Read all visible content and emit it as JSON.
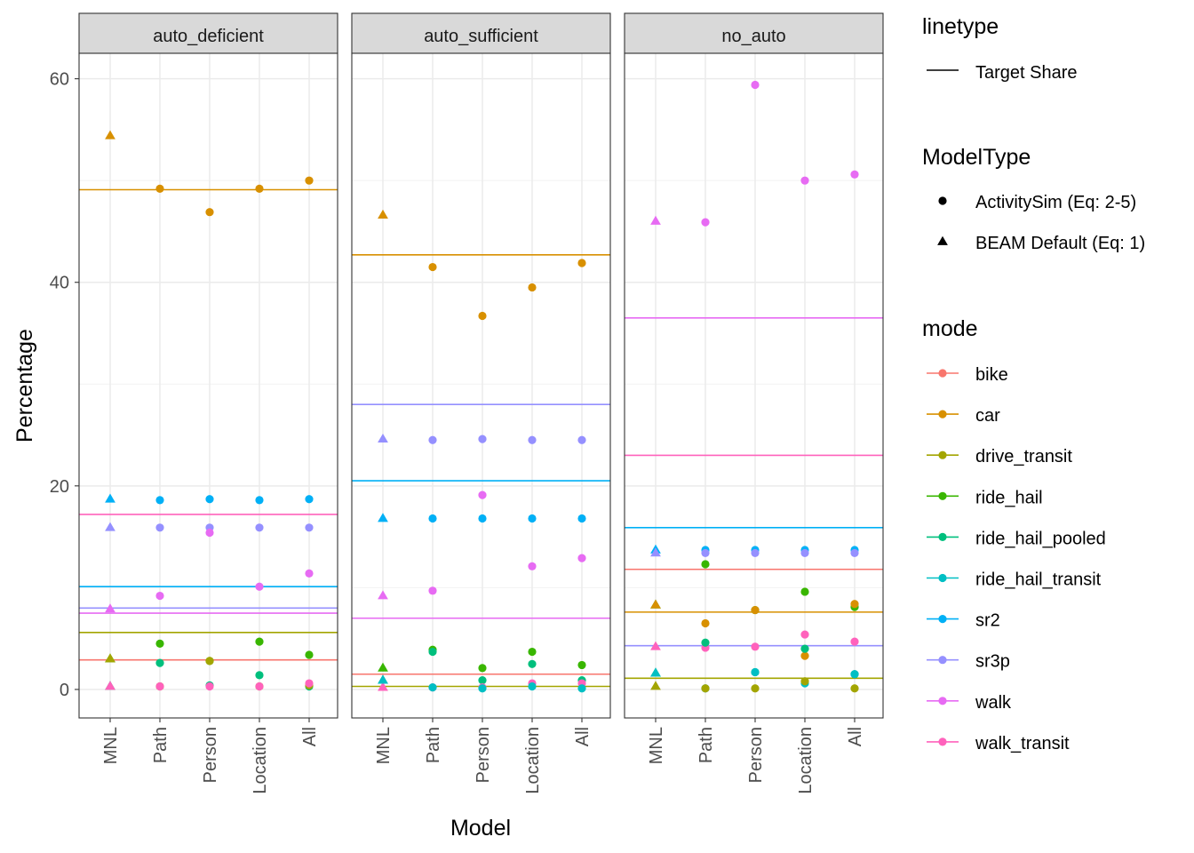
{
  "chart_data": {
    "type": "scatter",
    "ylabel": "Percentage",
    "xlabel": "Model",
    "categories": [
      "MNL",
      "Path",
      "Person",
      "Location",
      "All"
    ],
    "ylim": [
      -2.8,
      62.5
    ],
    "yticks": [
      0,
      20,
      40,
      60
    ],
    "grid": true,
    "facets": [
      "auto_deficient",
      "auto_sufficient",
      "no_auto"
    ],
    "modes": [
      "bike",
      "car",
      "drive_transit",
      "ride_hail",
      "ride_hail_pooled",
      "ride_hail_transit",
      "sr2",
      "sr3p",
      "walk",
      "walk_transit"
    ],
    "colors": {
      "bike": "#F8766D",
      "car": "#D89000",
      "drive_transit": "#A3A500",
      "ride_hail": "#39B600",
      "ride_hail_pooled": "#00BF7D",
      "ride_hail_transit": "#00BFC4",
      "sr2": "#00B0F6",
      "sr3p": "#9590FF",
      "walk": "#E76BF3",
      "walk_transit": "#FF62BC"
    },
    "legend": {
      "placement": "right",
      "linetype_title": "linetype",
      "linetype_items": [
        "Target Share"
      ],
      "modeltype_title": "ModelType",
      "modeltype_items": [
        {
          "label": "ActivitySim (Eq: 2-5)",
          "shape": "circle"
        },
        {
          "label": "BEAM Default (Eq: 1)",
          "shape": "triangle"
        }
      ],
      "mode_title": "mode"
    },
    "panels": [
      {
        "facet": "auto_deficient",
        "targets": {
          "bike": 2.9,
          "car": 49.1,
          "drive_transit": 5.6,
          "sr2": 10.1,
          "sr3p": 8.0,
          "walk": 7.5,
          "walk_transit": 17.2
        },
        "series": [
          {
            "mode": "car",
            "values": [
              54.4,
              49.2,
              46.9,
              49.2,
              50.0
            ]
          },
          {
            "mode": "sr2",
            "values": [
              18.7,
              18.6,
              18.7,
              18.6,
              18.7
            ]
          },
          {
            "mode": "sr3p",
            "values": [
              15.9,
              15.9,
              15.9,
              15.9,
              15.9
            ]
          },
          {
            "mode": "walk",
            "values": [
              7.9,
              9.2,
              15.4,
              10.1,
              11.4
            ]
          },
          {
            "mode": "ride_hail",
            "values": [
              3.0,
              4.5,
              2.8,
              4.7,
              3.4
            ]
          },
          {
            "mode": "ride_hail_pooled",
            "values": [
              0.3,
              2.6,
              0.4,
              1.4,
              0.3
            ]
          },
          {
            "mode": "drive_transit",
            "values": [
              3.0,
              0.3,
              2.8,
              0.3,
              0.4
            ]
          },
          {
            "mode": "walk_transit",
            "values": [
              0.3,
              0.3,
              0.3,
              0.3,
              0.6
            ]
          }
        ]
      },
      {
        "facet": "auto_sufficient",
        "targets": {
          "bike": 1.5,
          "car": 42.7,
          "drive_transit": 0.3,
          "sr2": 20.5,
          "sr3p": 28.0,
          "walk": 7.0
        },
        "series": [
          {
            "mode": "car",
            "values": [
              46.6,
              41.5,
              36.7,
              39.5,
              41.9
            ]
          },
          {
            "mode": "sr3p",
            "values": [
              24.6,
              24.5,
              24.6,
              24.5,
              24.5
            ]
          },
          {
            "mode": "sr2",
            "values": [
              16.8,
              16.8,
              16.8,
              16.8,
              16.8
            ]
          },
          {
            "mode": "walk",
            "values": [
              9.2,
              9.7,
              19.1,
              12.1,
              12.9
            ]
          },
          {
            "mode": "ride_hail",
            "values": [
              2.1,
              3.9,
              2.1,
              3.7,
              2.4
            ]
          },
          {
            "mode": "ride_hail_pooled",
            "values": [
              0.9,
              3.7,
              0.9,
              2.5,
              0.9
            ]
          },
          {
            "mode": "walk_transit",
            "values": [
              0.2,
              0.2,
              0.2,
              0.6,
              0.6
            ]
          },
          {
            "mode": "ride_hail_transit",
            "values": [
              0.9,
              0.2,
              0.1,
              0.3,
              0.1
            ]
          }
        ]
      },
      {
        "facet": "no_auto",
        "targets": {
          "bike": 11.8,
          "car": 7.6,
          "drive_transit": 1.1,
          "sr2": 15.9,
          "sr3p": 4.3,
          "walk": 36.5,
          "walk_transit": 23.0
        },
        "series": [
          {
            "mode": "walk",
            "values": [
              46.0,
              45.9,
              59.4,
              50.0,
              50.6
            ]
          },
          {
            "mode": "sr2",
            "values": [
              13.7,
              13.7,
              13.7,
              13.7,
              13.7
            ]
          },
          {
            "mode": "sr3p",
            "values": [
              13.4,
              13.4,
              13.4,
              13.4,
              13.4
            ]
          },
          {
            "mode": "ride_hail",
            "values": [
              8.3,
              12.3,
              7.8,
              9.6,
              8.1
            ]
          },
          {
            "mode": "car",
            "values": [
              8.3,
              6.5,
              7.8,
              3.3,
              8.4
            ]
          },
          {
            "mode": "walk_transit",
            "values": [
              4.2,
              4.1,
              4.2,
              5.4,
              4.7
            ]
          },
          {
            "mode": "ride_hail_pooled",
            "values": [
              1.6,
              4.6,
              1.7,
              4.0,
              1.5
            ]
          },
          {
            "mode": "ride_hail_transit",
            "values": [
              1.6,
              0.1,
              1.7,
              0.6,
              1.5
            ]
          },
          {
            "mode": "drive_transit",
            "values": [
              0.3,
              0.1,
              0.1,
              0.8,
              0.1
            ]
          }
        ]
      }
    ]
  }
}
